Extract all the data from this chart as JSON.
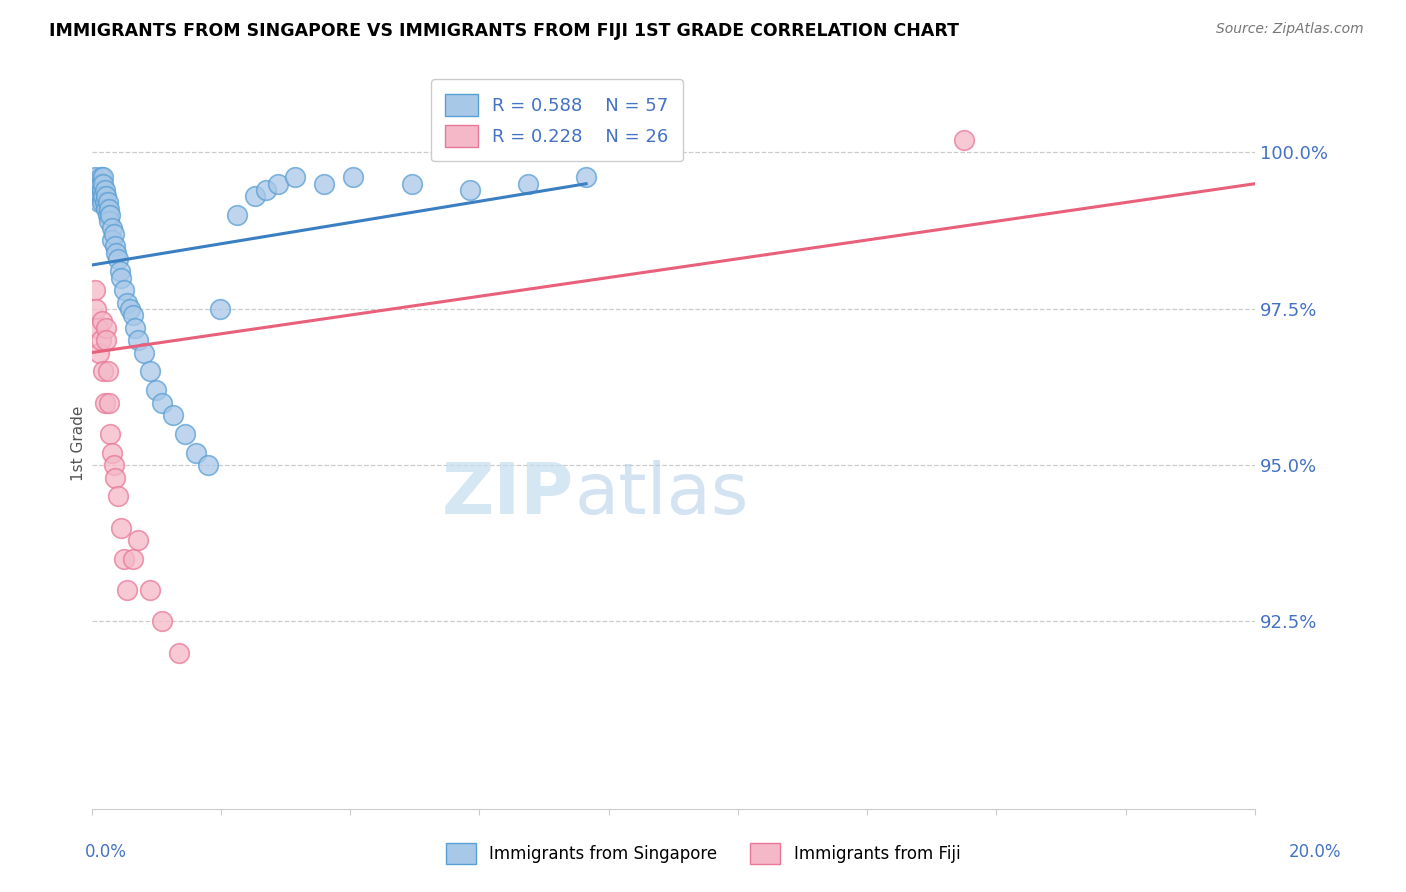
{
  "title": "IMMIGRANTS FROM SINGAPORE VS IMMIGRANTS FROM FIJI 1ST GRADE CORRELATION CHART",
  "source": "Source: ZipAtlas.com",
  "ylabel": "1st Grade",
  "x_min": 0.0,
  "x_max": 20.0,
  "y_min": 89.5,
  "y_max": 101.2,
  "legend_r1": "R = 0.588",
  "legend_n1": "N = 57",
  "legend_r2": "R = 0.228",
  "legend_n2": "N = 26",
  "blue_color": "#a8c8e8",
  "blue_edge_color": "#5a9fd4",
  "pink_color": "#f4b8c8",
  "pink_edge_color": "#e87898",
  "blue_line_color": "#3a7fc1",
  "pink_line_color": "#e8607a",
  "legend_text_color": "#4472C4",
  "right_axis_color": "#4472C4",
  "watermark_text": "ZIPatlas",
  "watermark_zip_color": "#c8dff0",
  "watermark_atlas_color": "#b0cce0",
  "singapore_x": [
    0.05,
    0.08,
    0.1,
    0.1,
    0.12,
    0.12,
    0.15,
    0.15,
    0.15,
    0.18,
    0.18,
    0.2,
    0.2,
    0.2,
    0.22,
    0.22,
    0.25,
    0.25,
    0.28,
    0.28,
    0.3,
    0.3,
    0.32,
    0.35,
    0.35,
    0.38,
    0.4,
    0.42,
    0.45,
    0.48,
    0.5,
    0.55,
    0.6,
    0.65,
    0.7,
    0.75,
    0.8,
    0.9,
    1.0,
    1.1,
    1.2,
    1.4,
    1.6,
    1.8,
    2.0,
    2.2,
    2.5,
    2.8,
    3.0,
    3.2,
    3.5,
    4.0,
    4.5,
    5.5,
    6.5,
    7.5,
    8.5
  ],
  "singapore_y": [
    99.6,
    99.5,
    99.4,
    99.3,
    99.5,
    99.2,
    99.6,
    99.5,
    99.3,
    99.4,
    99.2,
    99.6,
    99.5,
    99.3,
    99.4,
    99.2,
    99.3,
    99.1,
    99.2,
    99.0,
    99.1,
    98.9,
    99.0,
    98.8,
    98.6,
    98.7,
    98.5,
    98.4,
    98.3,
    98.1,
    98.0,
    97.8,
    97.6,
    97.5,
    97.4,
    97.2,
    97.0,
    96.8,
    96.5,
    96.2,
    96.0,
    95.8,
    95.5,
    95.2,
    95.0,
    97.5,
    99.0,
    99.3,
    99.4,
    99.5,
    99.6,
    99.5,
    99.6,
    99.5,
    99.4,
    99.5,
    99.6
  ],
  "fiji_x": [
    0.05,
    0.08,
    0.1,
    0.12,
    0.15,
    0.18,
    0.2,
    0.22,
    0.25,
    0.25,
    0.28,
    0.3,
    0.32,
    0.35,
    0.38,
    0.4,
    0.45,
    0.5,
    0.55,
    0.6,
    0.7,
    0.8,
    1.0,
    1.2,
    1.5,
    15.0
  ],
  "fiji_y": [
    97.8,
    97.5,
    97.2,
    96.8,
    97.0,
    97.3,
    96.5,
    96.0,
    97.2,
    97.0,
    96.5,
    96.0,
    95.5,
    95.2,
    95.0,
    94.8,
    94.5,
    94.0,
    93.5,
    93.0,
    93.5,
    93.8,
    93.0,
    92.5,
    92.0,
    100.2
  ],
  "blue_trendline_x": [
    0.0,
    8.5
  ],
  "blue_trendline_y": [
    98.2,
    99.5
  ],
  "pink_trendline_x": [
    0.0,
    20.0
  ],
  "pink_trendline_y": [
    96.8,
    99.5
  ]
}
